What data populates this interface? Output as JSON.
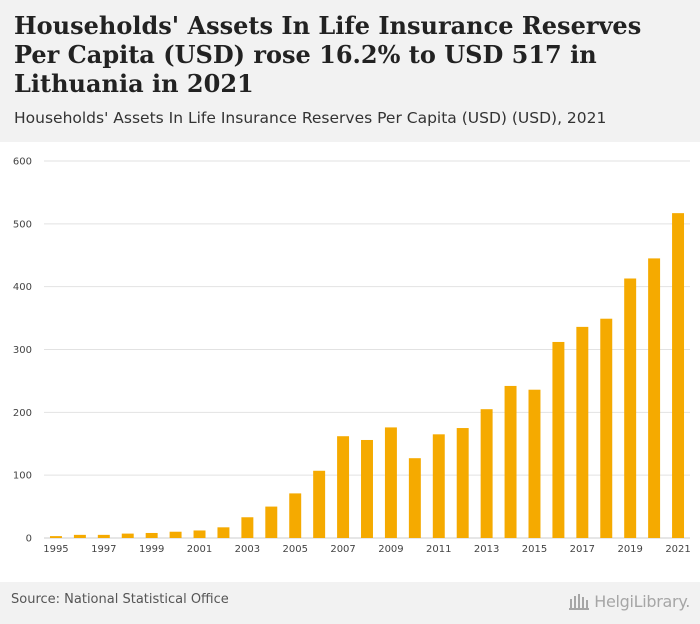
{
  "header": {
    "title": "Households' Assets In Life Insurance Reserves Per Capita (USD) rose 16.2% to USD 517 in Lithuania in 2021",
    "subtitle": "Households' Assets In Life Insurance Reserves Per Capita (USD) (USD), 2021"
  },
  "footer": {
    "source": "Source: National Statistical Office",
    "brand": "HelgiLibrary."
  },
  "colors": {
    "bar": "#f5aa00",
    "grid": "#e2e2e2",
    "axis_text": "#444444",
    "header_bg": "#f2f2f2"
  },
  "chart_data": {
    "type": "bar",
    "title": "Households' Assets In Life Insurance Reserves Per Capita (USD) (USD), 2021",
    "xlabel": "",
    "ylabel": "",
    "ylim": [
      0,
      600
    ],
    "yticks": [
      0,
      100,
      200,
      300,
      400,
      500,
      600
    ],
    "grid": true,
    "categories": [
      "1995",
      "1996",
      "1997",
      "1998",
      "1999",
      "2000",
      "2001",
      "2002",
      "2003",
      "2004",
      "2005",
      "2006",
      "2007",
      "2008",
      "2009",
      "2010",
      "2011",
      "2012",
      "2013",
      "2014",
      "2015",
      "2016",
      "2017",
      "2018",
      "2019",
      "2020",
      "2021"
    ],
    "xtick_labels": [
      "1995",
      "1997",
      "1999",
      "2001",
      "2003",
      "2005",
      "2007",
      "2009",
      "2011",
      "2013",
      "2015",
      "2017",
      "2019",
      "2021"
    ],
    "values": [
      3,
      5,
      5,
      7,
      8,
      10,
      12,
      17,
      33,
      50,
      71,
      107,
      162,
      156,
      176,
      127,
      165,
      175,
      205,
      242,
      236,
      312,
      336,
      349,
      413,
      445,
      517
    ]
  }
}
